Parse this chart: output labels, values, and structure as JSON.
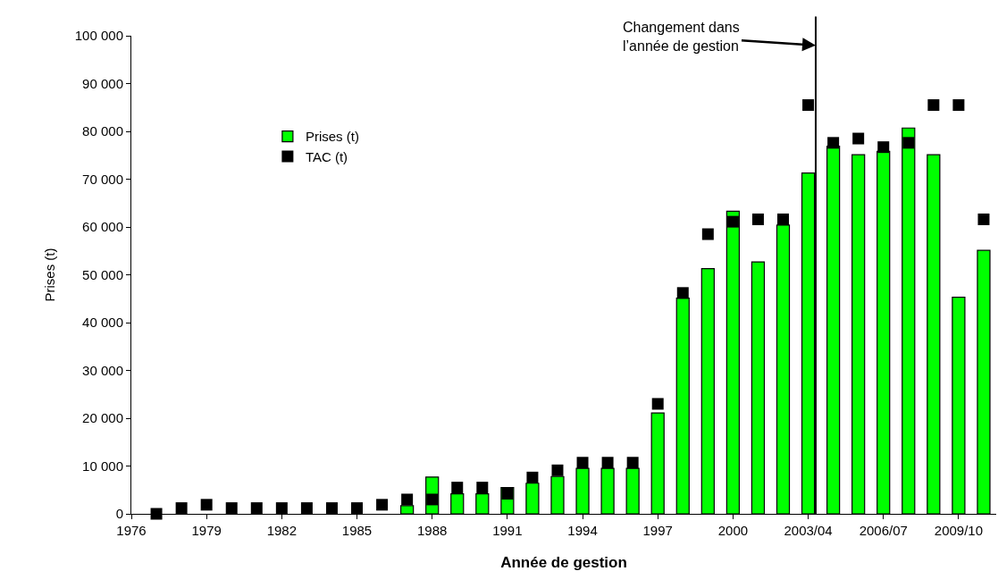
{
  "chart_data": {
    "type": "bar",
    "xlabel": "Année de gestion",
    "ylabel": "Prises (t)",
    "x": [
      1977,
      1978,
      1979,
      1980,
      1981,
      1982,
      1983,
      1984,
      1985,
      1986,
      1987,
      1988,
      1989,
      1990,
      1991,
      1992,
      1993,
      1994,
      1995,
      1996,
      1997,
      1998,
      1999,
      2000,
      2001,
      2002,
      2003,
      2004,
      2005,
      2006,
      2007,
      2008,
      2009,
      2010
    ],
    "series": [
      {
        "name": "Prises (t)",
        "color": "#00ff00",
        "values": [
          null,
          null,
          null,
          null,
          null,
          null,
          null,
          null,
          null,
          null,
          1700,
          7700,
          4200,
          4200,
          5500,
          6400,
          7800,
          9500,
          9500,
          9500,
          21100,
          45100,
          51300,
          63300,
          52700,
          60400,
          71300,
          76900,
          75100,
          75800,
          80700,
          75100,
          45300,
          55100
        ]
      },
      {
        "name": "TAC (t)",
        "type": "scatter",
        "color": "#000000",
        "marker": "square",
        "values": [
          0,
          1200,
          1900,
          1200,
          1200,
          1200,
          1200,
          1200,
          1200,
          1900,
          3000,
          3000,
          5500,
          5500,
          4200,
          7600,
          9100,
          10700,
          10700,
          10700,
          23000,
          46200,
          58500,
          61100,
          61600,
          61600,
          85500,
          77600,
          78500,
          76700,
          77600,
          85500,
          85500,
          61600
        ]
      }
    ],
    "xlim": [
      1976,
      2010.5
    ],
    "xticks": [
      1976,
      1979,
      1982,
      1985,
      1988,
      1991,
      1994,
      1997,
      2000,
      {
        "value": 2003,
        "label": "2003/04"
      },
      {
        "value": 2006,
        "label": "2006/07"
      },
      {
        "value": 2009,
        "label": "2009/10"
      }
    ],
    "ylim": [
      0,
      100000
    ],
    "yticks": [
      0,
      {
        "value": 10000,
        "label": "10 000"
      },
      {
        "value": 20000,
        "label": "20 000"
      },
      {
        "value": 30000,
        "label": "30 000"
      },
      {
        "value": 40000,
        "label": "40 000"
      },
      {
        "value": 50000,
        "label": "50 000"
      },
      {
        "value": 60000,
        "label": "60 000"
      },
      {
        "value": 70000,
        "label": "70 000"
      },
      {
        "value": 80000,
        "label": "80 000"
      },
      {
        "value": 90000,
        "label": "90 000"
      },
      {
        "value": 100000,
        "label": "100 000"
      }
    ],
    "ref_lines": [
      {
        "axis": "x",
        "value": 2003.3,
        "color": "#000000"
      }
    ],
    "annotations": [
      {
        "text": "Changement dans\nl’année de gestion",
        "x": 2003.3,
        "y": 98000
      }
    ],
    "legend": "top left"
  }
}
